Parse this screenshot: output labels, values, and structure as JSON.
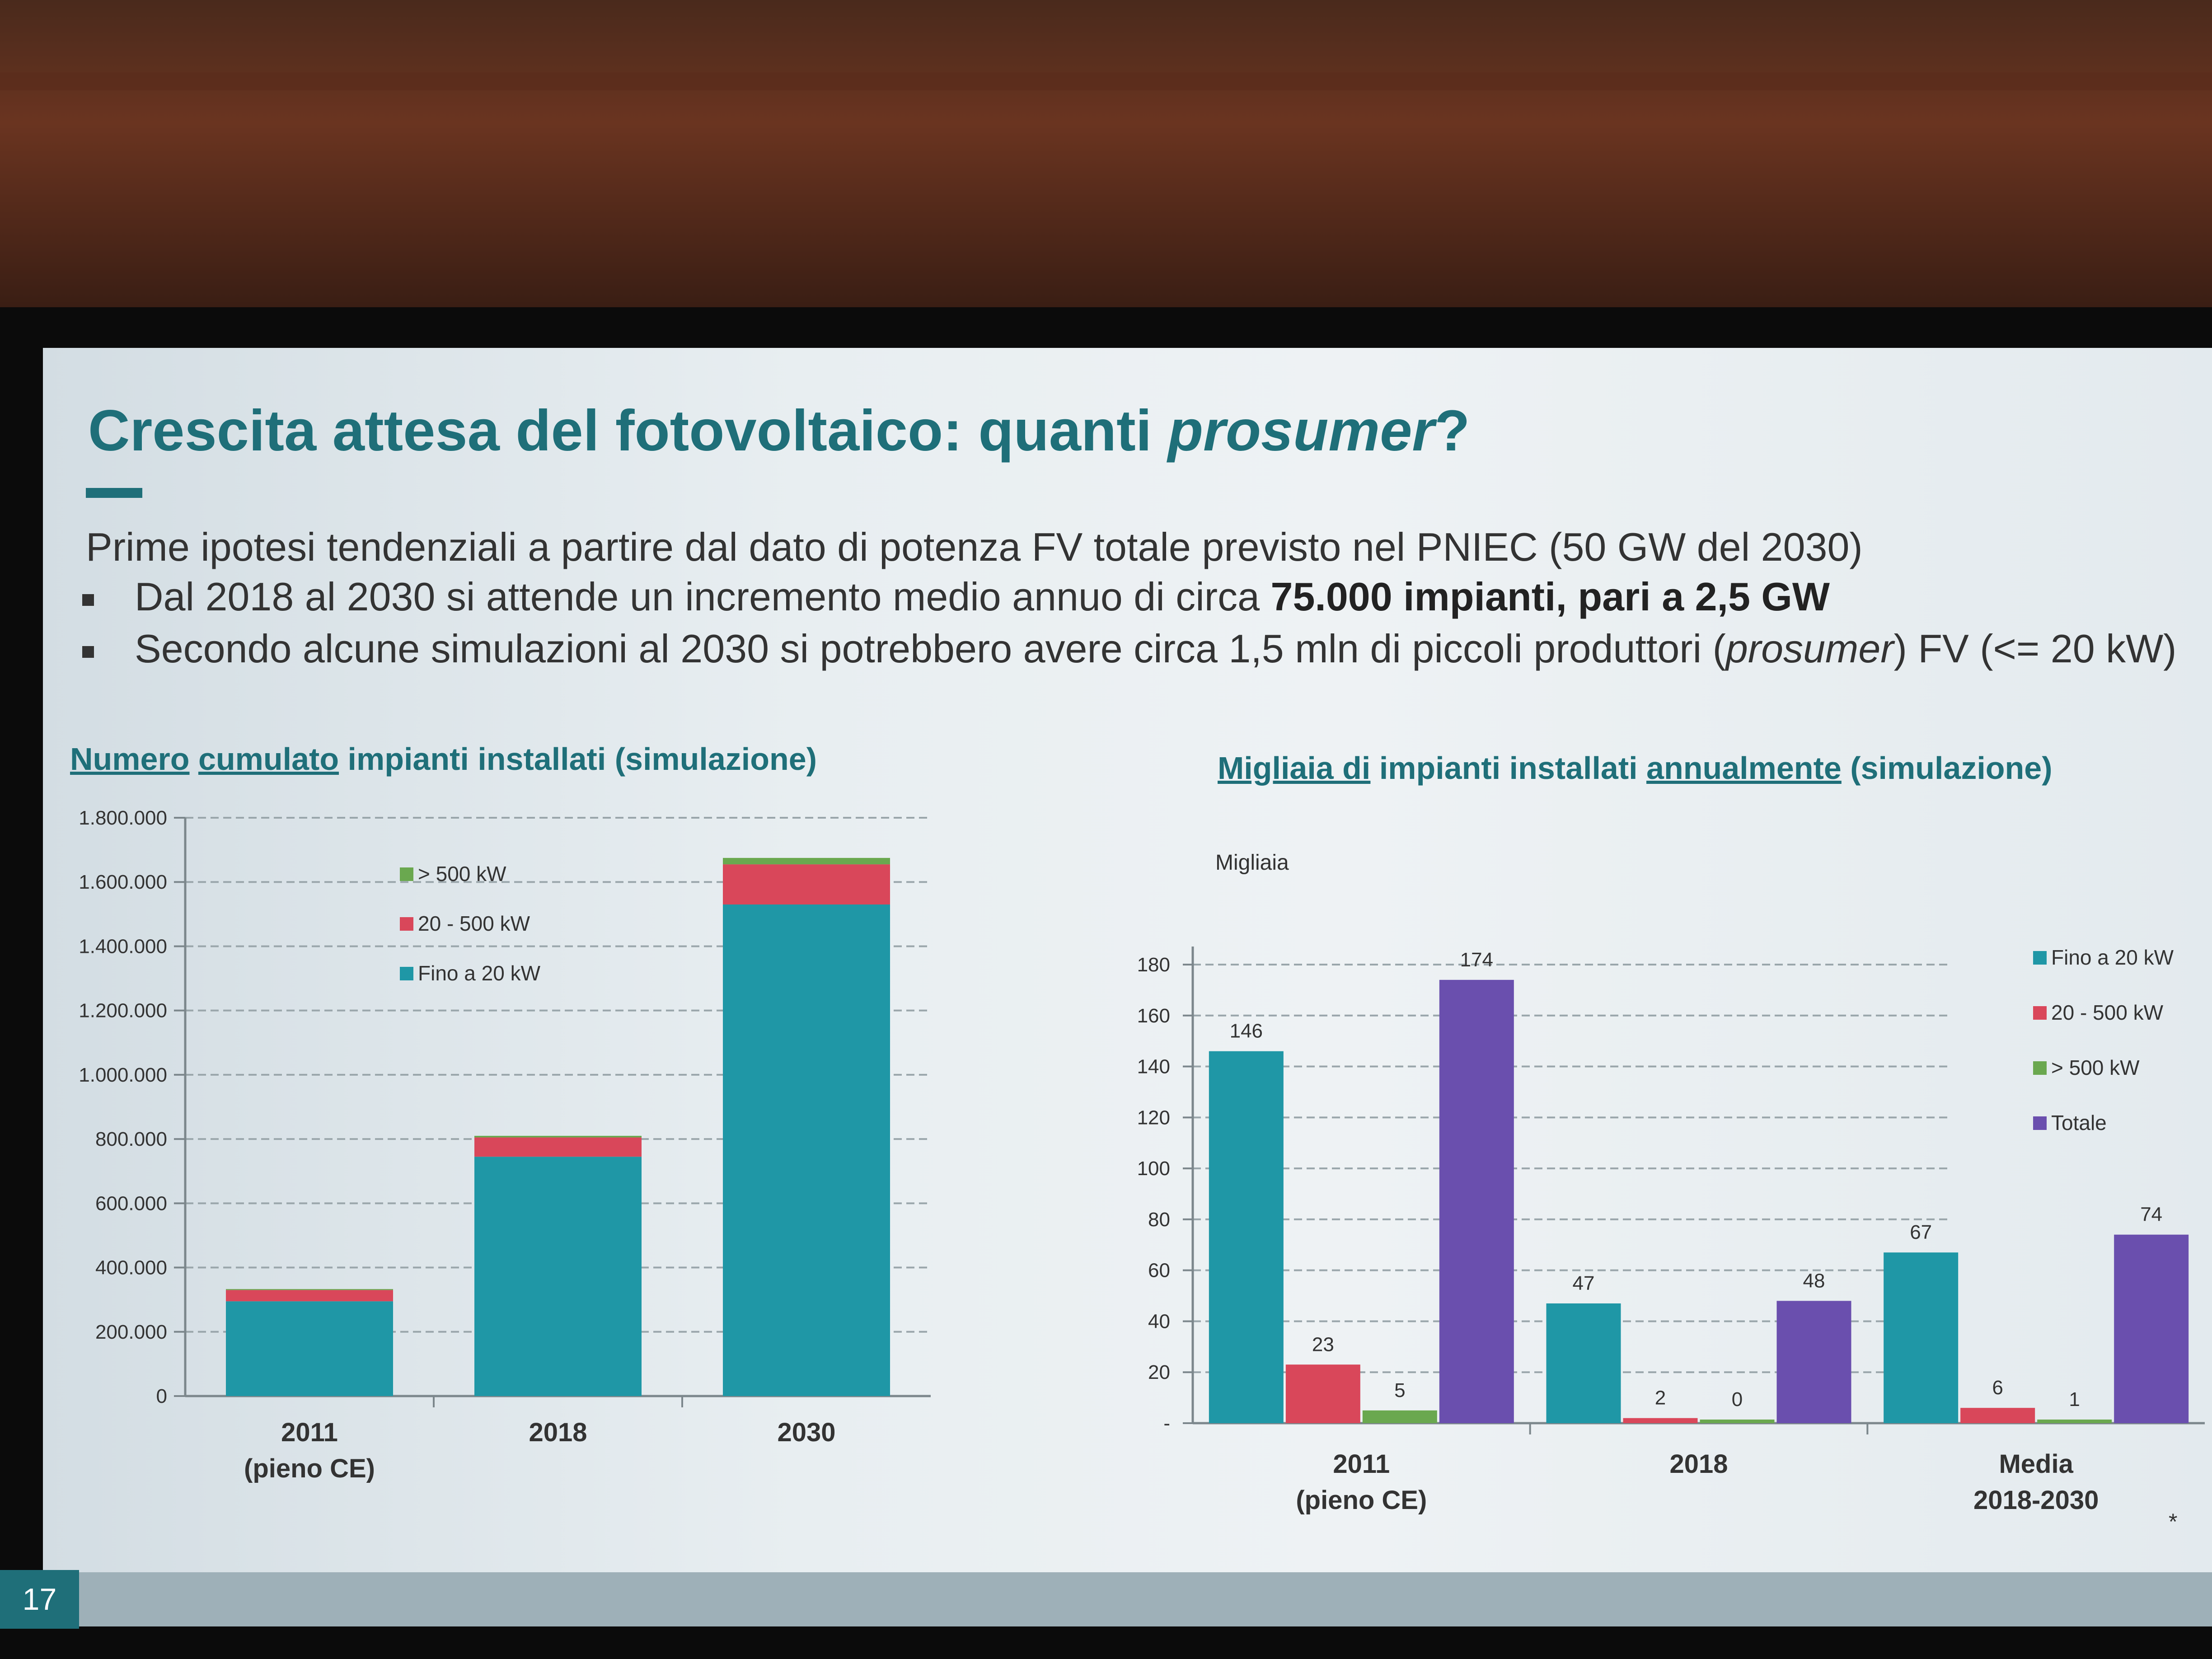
{
  "slide": {
    "title_part1": "Crescita attesa del fotovoltaico: quanti ",
    "title_italic": "prosumer",
    "title_end": "?",
    "intro": "Prime ipotesi tendenziali a partire dal dato di potenza FV totale previsto nel PNIEC (50 GW del 2030)",
    "bullet1_pre": "Dal 2018 al 2030 si attende un incremento medio annuo di circa ",
    "bullet1_bold": "75.000 impianti, pari a 2,5 GW",
    "bullet2_pre": "Secondo alcune simulazioni al 2030 si potrebbero avere circa 1,5 mln di piccoli produttori (",
    "bullet2_italic": "prosumer",
    "bullet2_end": ") FV (<= 20 kW)",
    "page_number": "17",
    "footnote_mark": "*"
  },
  "chart1_title": {
    "u1": "Numero",
    "u2": "cumulato",
    "rest": " impianti installati (simulazione)"
  },
  "chart2_title": {
    "u1": "Migliaia di",
    "mid": " impianti installati ",
    "u2": "annualmente",
    "rest": " (simulazione)"
  },
  "colors": {
    "teal": "#1f97a6",
    "red": "#d9475a",
    "green": "#6aa84f",
    "purple": "#6a4fae"
  },
  "chart_data": [
    {
      "type": "bar",
      "stacked": true,
      "categories": [
        [
          "2011",
          "(pieno CE)"
        ],
        [
          "2018"
        ],
        [
          "2030"
        ]
      ],
      "series": [
        {
          "name": "Fino a 20 kW",
          "color": "#1f97a6",
          "values": [
            295000,
            745000,
            1530000
          ]
        },
        {
          "name": "20 - 500 kW",
          "color": "#d9475a",
          "values": [
            35000,
            60000,
            125000
          ]
        },
        {
          "name": "> 500 kW",
          "color": "#6aa84f",
          "values": [
            3000,
            5000,
            20000
          ]
        }
      ],
      "legend_order": [
        "> 500 kW",
        "20 - 500 kW",
        "Fino a 20 kW"
      ],
      "yticks": [
        "0",
        "200.000",
        "400.000",
        "600.000",
        "800.000",
        "1.000.000",
        "1.200.000",
        "1.400.000",
        "1.600.000",
        "1.800.000"
      ],
      "ylim": [
        0,
        1800000
      ],
      "grid": true,
      "legend": "top-left"
    },
    {
      "type": "bar",
      "stacked": false,
      "ylabel": "Migliaia",
      "categories": [
        [
          "2011",
          "(pieno CE)"
        ],
        [
          "2018"
        ],
        [
          "Media",
          "2018-2030"
        ]
      ],
      "series": [
        {
          "name": "Fino a 20 kW",
          "color": "#1f97a6",
          "values": [
            146,
            47,
            67
          ]
        },
        {
          "name": "20 - 500 kW",
          "color": "#d9475a",
          "values": [
            23,
            2,
            6
          ]
        },
        {
          "name": "> 500 kW",
          "color": "#6aa84f",
          "values": [
            5,
            0,
            1
          ]
        },
        {
          "name": "Totale",
          "color": "#6a4fae",
          "values": [
            174,
            48,
            74
          ]
        }
      ],
      "yticks": [
        "-",
        "20",
        "40",
        "60",
        "80",
        "100",
        "120",
        "140",
        "160",
        "180"
      ],
      "ylim": [
        0,
        180
      ],
      "grid": true,
      "legend": "right"
    }
  ]
}
